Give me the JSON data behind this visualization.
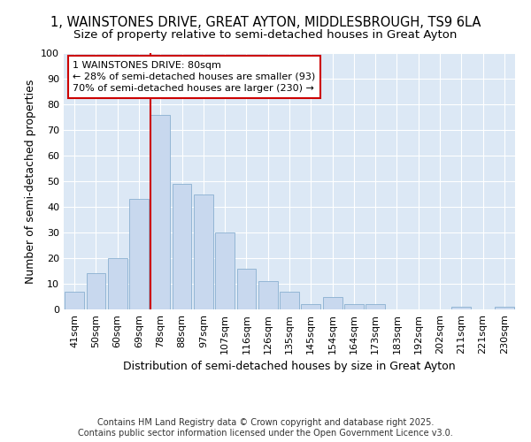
{
  "title_line1": "1, WAINSTONES DRIVE, GREAT AYTON, MIDDLESBROUGH, TS9 6LA",
  "title_line2": "Size of property relative to semi-detached houses in Great Ayton",
  "xlabel": "Distribution of semi-detached houses by size in Great Ayton",
  "ylabel": "Number of semi-detached properties",
  "categories": [
    "41sqm",
    "50sqm",
    "60sqm",
    "69sqm",
    "78sqm",
    "88sqm",
    "97sqm",
    "107sqm",
    "116sqm",
    "126sqm",
    "135sqm",
    "145sqm",
    "154sqm",
    "164sqm",
    "173sqm",
    "183sqm",
    "192sqm",
    "202sqm",
    "211sqm",
    "221sqm",
    "230sqm"
  ],
  "values": [
    7,
    14,
    20,
    43,
    76,
    49,
    45,
    30,
    16,
    11,
    7,
    2,
    5,
    2,
    2,
    0,
    0,
    0,
    1,
    0,
    1
  ],
  "bar_color": "#c8d8ee",
  "bar_edge_color": "#8ab0d0",
  "property_line_index": 4,
  "property_line_color": "#cc0000",
  "annotation_line1": "1 WAINSTONES DRIVE: 80sqm",
  "annotation_line2": "← 28% of semi-detached houses are smaller (93)",
  "annotation_line3": "70% of semi-detached houses are larger (230) →",
  "annotation_box_color": "#ffffff",
  "annotation_box_edge_color": "#cc0000",
  "ylim": [
    0,
    100
  ],
  "yticks": [
    0,
    10,
    20,
    30,
    40,
    50,
    60,
    70,
    80,
    90,
    100
  ],
  "background_color": "#dce8f5",
  "grid_color": "#ffffff",
  "footer_text": "Contains HM Land Registry data © Crown copyright and database right 2025.\nContains public sector information licensed under the Open Government Licence v3.0.",
  "title_fontsize": 10.5,
  "subtitle_fontsize": 9.5,
  "axis_label_fontsize": 9,
  "tick_fontsize": 8,
  "annotation_fontsize": 8,
  "footer_fontsize": 7
}
